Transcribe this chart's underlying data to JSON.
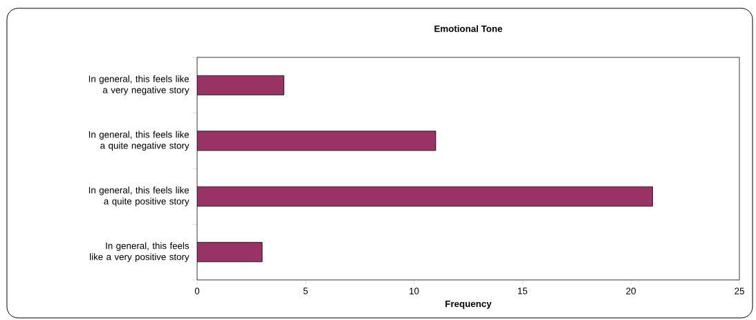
{
  "chart_data": {
    "type": "bar",
    "orientation": "horizontal",
    "title": "Emotional Tone",
    "xlabel": "Frequency",
    "categories": [
      "In general, this feels like a very negative story",
      "In general, this feels like a quite negative story",
      "In general, this feels like a quite positive story",
      "In general, this feels like a very positive story"
    ],
    "values": [
      4,
      11,
      21,
      3
    ],
    "color": "#993366",
    "xlim": [
      0,
      25
    ],
    "xticks": [
      0,
      5,
      10,
      15,
      20,
      25
    ]
  }
}
